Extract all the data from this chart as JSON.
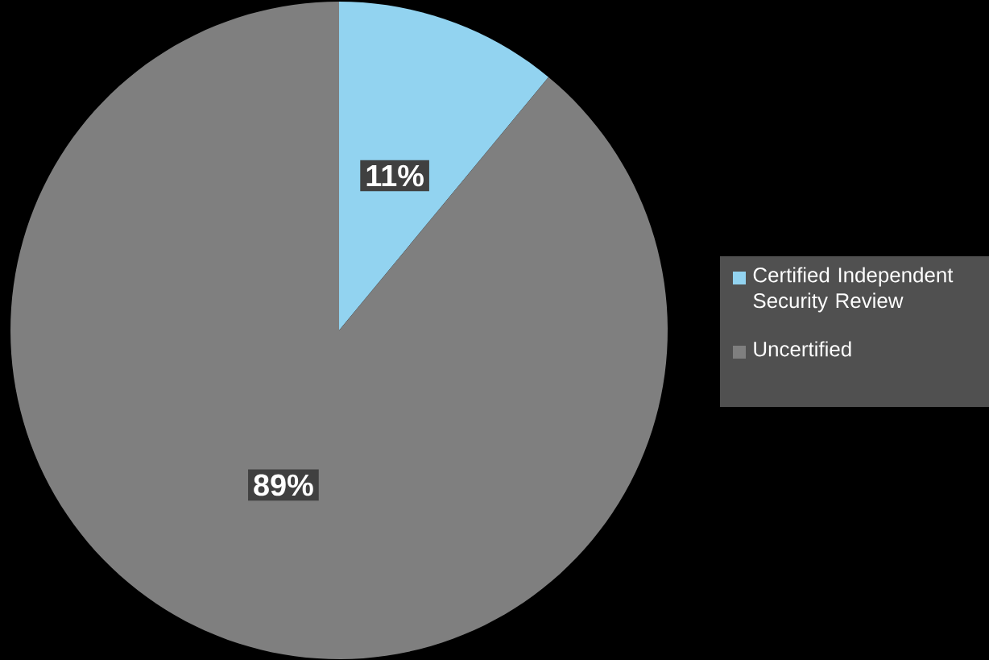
{
  "chart_data": {
    "type": "pie",
    "categories": [
      "Certified Independent Security Review",
      "Uncertified"
    ],
    "values": [
      11,
      89
    ],
    "colors": [
      "#92d3f0",
      "#7f7f7f"
    ],
    "value_labels": [
      "11%",
      "89%"
    ],
    "legend": "right"
  }
}
